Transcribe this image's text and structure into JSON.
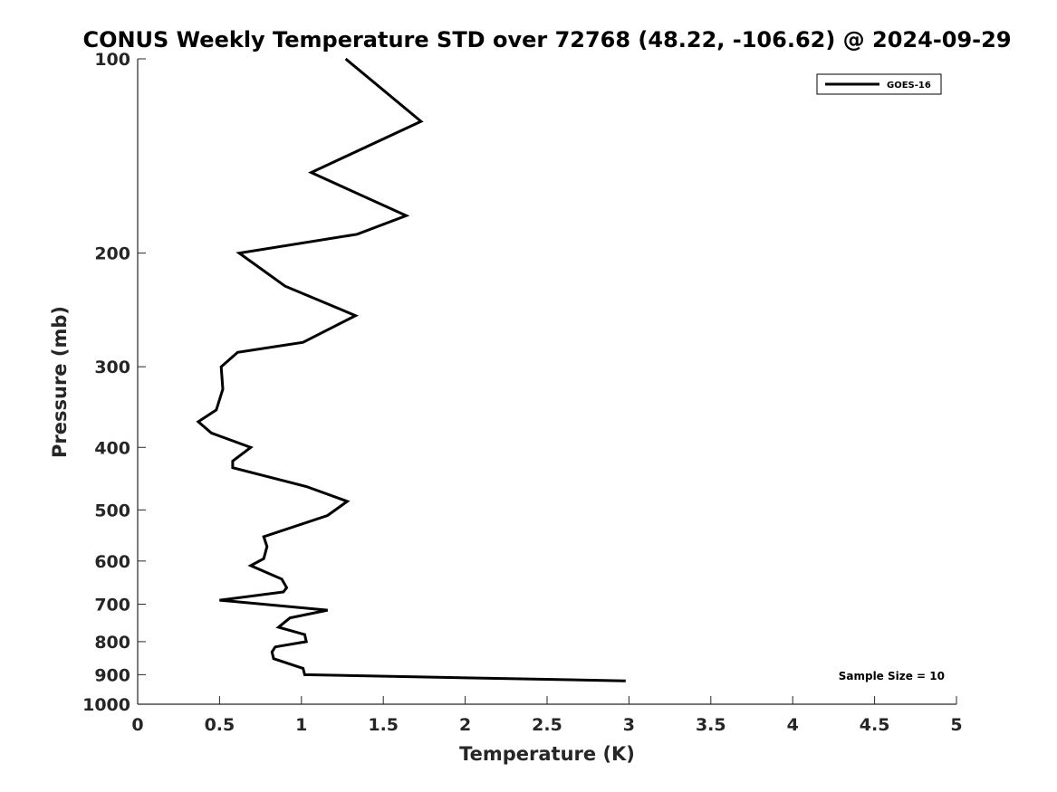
{
  "chart_data": {
    "type": "line",
    "title": "CONUS Weekly Temperature STD over 72768 (48.22, -106.62) @ 2024-09-29",
    "xlabel": "Temperature (K)",
    "ylabel": "Pressure (mb)",
    "xlim": [
      0,
      5
    ],
    "ylim": [
      100,
      1000
    ],
    "y_scale": "log",
    "y_reversed": true,
    "x_ticks": [
      "0",
      "0.5",
      "1",
      "1.5",
      "2",
      "2.5",
      "3",
      "3.5",
      "4",
      "4.5",
      "5"
    ],
    "y_ticks": [
      "100",
      "200",
      "300",
      "400",
      "500",
      "600",
      "700",
      "800",
      "900",
      "1000"
    ],
    "grid": false,
    "legend_position": "top-right",
    "series": [
      {
        "name": "GOES-16",
        "color": "#000000",
        "x": [
          1.27,
          1.73,
          1.06,
          1.64,
          1.34,
          0.62,
          0.9,
          1.33,
          1.01,
          0.61,
          0.51,
          0.52,
          0.48,
          0.37,
          0.45,
          0.69,
          0.58,
          0.58,
          1.03,
          1.28,
          1.16,
          0.77,
          0.79,
          0.77,
          0.69,
          0.88,
          0.91,
          0.89,
          0.5,
          1.16,
          0.93,
          0.86,
          1.02,
          1.03,
          0.84,
          0.82,
          0.83,
          1.01,
          1.02,
          2.98
        ],
        "y": [
          100,
          125,
          150,
          175,
          187,
          200,
          225,
          250,
          275,
          285,
          300,
          325,
          350,
          365,
          380,
          400,
          420,
          430,
          460,
          485,
          510,
          550,
          570,
          595,
          610,
          640,
          660,
          670,
          690,
          715,
          735,
          760,
          780,
          800,
          815,
          830,
          850,
          880,
          900,
          920
        ]
      }
    ],
    "annotations": [
      "Sample Size = 10"
    ]
  }
}
